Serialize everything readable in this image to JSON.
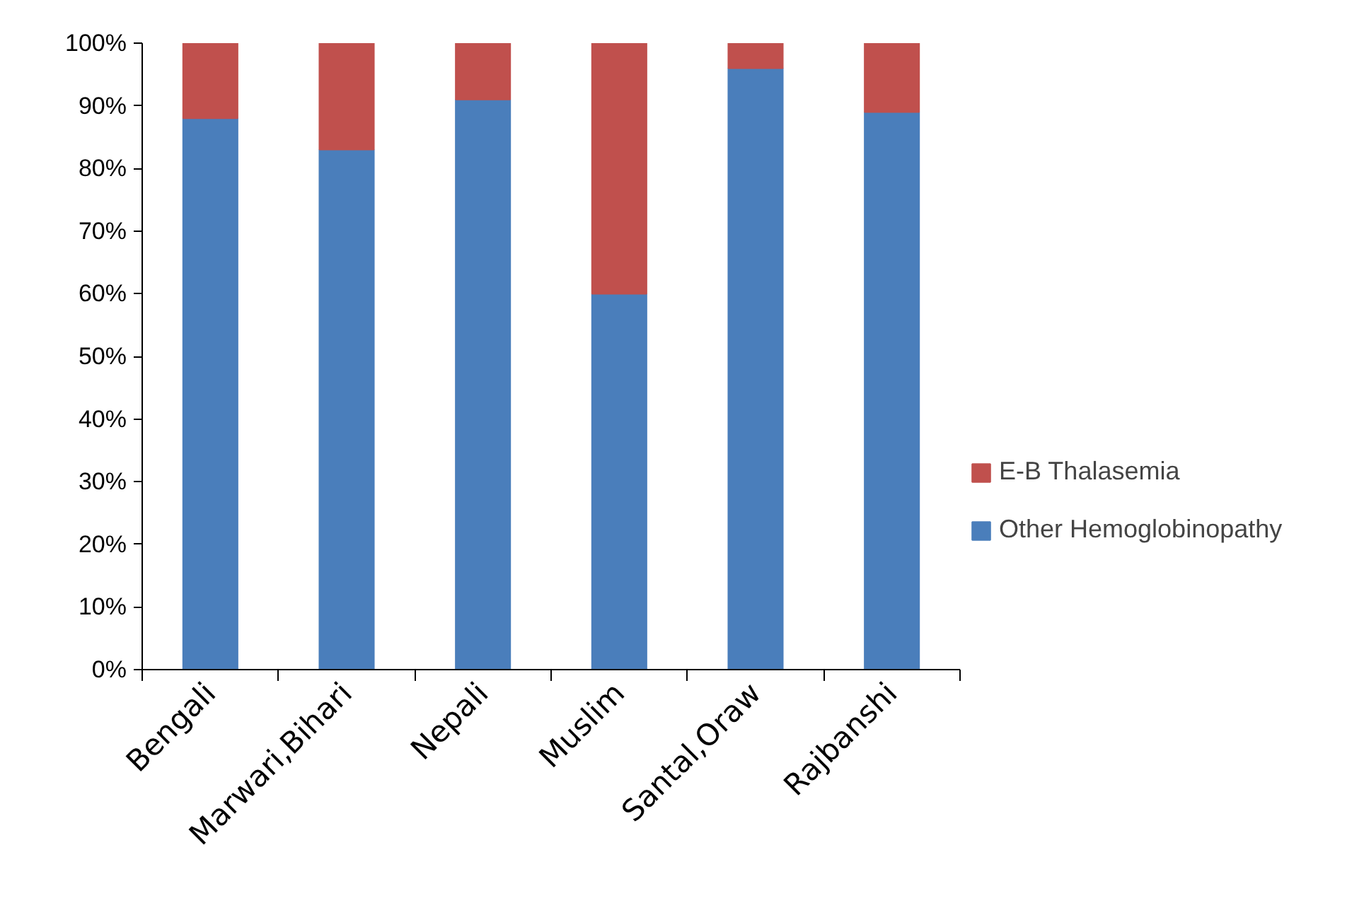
{
  "chart_data": {
    "type": "bar",
    "stacked": true,
    "categories": [
      "Bengali",
      "Marwari,Bihari",
      "Nepali",
      "Muslim",
      "Santal,Oraw",
      "Rajbanshi"
    ],
    "series": [
      {
        "name": "Other Hemoglobinopathy",
        "color": "#4a7ebb",
        "values": [
          88,
          83,
          91,
          60,
          96,
          89
        ]
      },
      {
        "name": "E-B Thalasemia",
        "color": "#c0504d",
        "values": [
          12,
          17,
          9,
          40,
          4,
          11
        ]
      }
    ],
    "ylim": [
      0,
      100
    ],
    "yticks": [
      {
        "value": 0,
        "label": "0%"
      },
      {
        "value": 10,
        "label": "10%"
      },
      {
        "value": 20,
        "label": "20%"
      },
      {
        "value": 30,
        "label": "30%"
      },
      {
        "value": 40,
        "label": "40%"
      },
      {
        "value": 50,
        "label": "50%"
      },
      {
        "value": 60,
        "label": "60%"
      },
      {
        "value": 70,
        "label": "70%"
      },
      {
        "value": 80,
        "label": "80%"
      },
      {
        "value": 90,
        "label": "90%"
      },
      {
        "value": 100,
        "label": "100%"
      }
    ],
    "grid": false,
    "legend": "right"
  }
}
